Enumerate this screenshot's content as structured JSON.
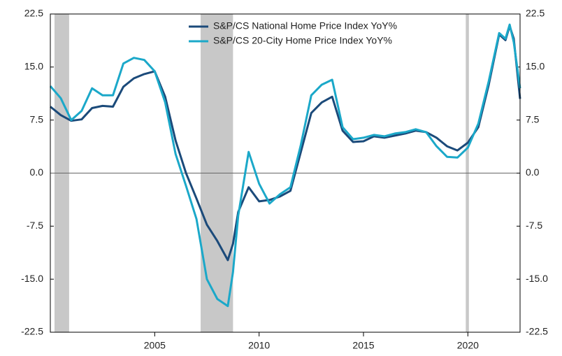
{
  "chart_data": {
    "type": "line",
    "x": [
      2000.0,
      2000.5,
      2001.0,
      2001.5,
      2002.0,
      2002.5,
      2003.0,
      2003.5,
      2004.0,
      2004.5,
      2005.0,
      2005.5,
      2006.0,
      2006.5,
      2007.0,
      2007.5,
      2008.0,
      2008.5,
      2008.75,
      2009.0,
      2009.5,
      2010.0,
      2010.5,
      2011.0,
      2011.5,
      2012.0,
      2012.5,
      2013.0,
      2013.5,
      2014.0,
      2014.5,
      2015.0,
      2015.5,
      2016.0,
      2016.5,
      2017.0,
      2017.5,
      2018.0,
      2018.5,
      2019.0,
      2019.5,
      2020.0,
      2020.5,
      2021.0,
      2021.5,
      2021.8,
      2022.0,
      2022.2,
      2022.5
    ],
    "series": [
      {
        "name": "S&P/CS National Home Price Index YoY%",
        "color": "#1b4a7a",
        "values": [
          9.4,
          8.2,
          7.4,
          7.6,
          9.2,
          9.5,
          9.4,
          12.2,
          13.4,
          14.0,
          14.4,
          10.8,
          4.6,
          0.0,
          -3.6,
          -7.3,
          -9.6,
          -12.3,
          -10.0,
          -5.5,
          -2.0,
          -4.0,
          -3.8,
          -3.3,
          -2.5,
          3.0,
          8.5,
          10.0,
          10.8,
          6.0,
          4.4,
          4.5,
          5.2,
          5.0,
          5.3,
          5.6,
          6.0,
          5.8,
          5.0,
          3.8,
          3.2,
          4.3,
          6.5,
          12.5,
          19.6,
          18.8,
          20.8,
          19.0,
          10.5
        ]
      },
      {
        "name": "S&P/CS 20-City Home Price Index YoY%",
        "color": "#1ba8c9",
        "values": [
          12.3,
          10.6,
          7.5,
          8.8,
          12.0,
          11.0,
          11.0,
          15.5,
          16.3,
          16.0,
          14.4,
          10.0,
          2.7,
          -1.8,
          -6.5,
          -15.0,
          -17.8,
          -18.8,
          -14.0,
          -6.0,
          3.0,
          -1.5,
          -4.3,
          -3.0,
          -2.0,
          4.0,
          11.0,
          12.5,
          13.2,
          6.5,
          4.8,
          5.0,
          5.4,
          5.2,
          5.6,
          5.8,
          6.2,
          5.8,
          3.8,
          2.3,
          2.2,
          3.6,
          7.0,
          13.0,
          19.8,
          19.0,
          21.0,
          18.5,
          12.0
        ]
      }
    ],
    "shading": [
      [
        2000.2,
        2000.9
      ],
      [
        2007.2,
        2008.75
      ],
      [
        2019.9,
        2020.05
      ]
    ],
    "shading_color": "#c8c8c8",
    "xlim": [
      2000,
      2022.5
    ],
    "xticks": [
      2005,
      2010,
      2015,
      2020
    ],
    "ylim": [
      -22.5,
      22.5
    ],
    "yticks": [
      22.5,
      {
        "value": 15,
        "label": "15.0"
      },
      7.5,
      {
        "value": 0,
        "label": "0.0"
      },
      -7.5,
      {
        "value": -15,
        "label": "-15.0"
      },
      -22.5
    ],
    "y2lim": [
      -22.5,
      22.5
    ],
    "y2ticks": [
      22.5,
      {
        "value": 15,
        "label": "15.0"
      },
      7.5,
      {
        "value": 0,
        "label": "0.0"
      },
      -7.5,
      {
        "value": -15,
        "label": "-15.0"
      },
      -22.5
    ],
    "legend": "top"
  }
}
